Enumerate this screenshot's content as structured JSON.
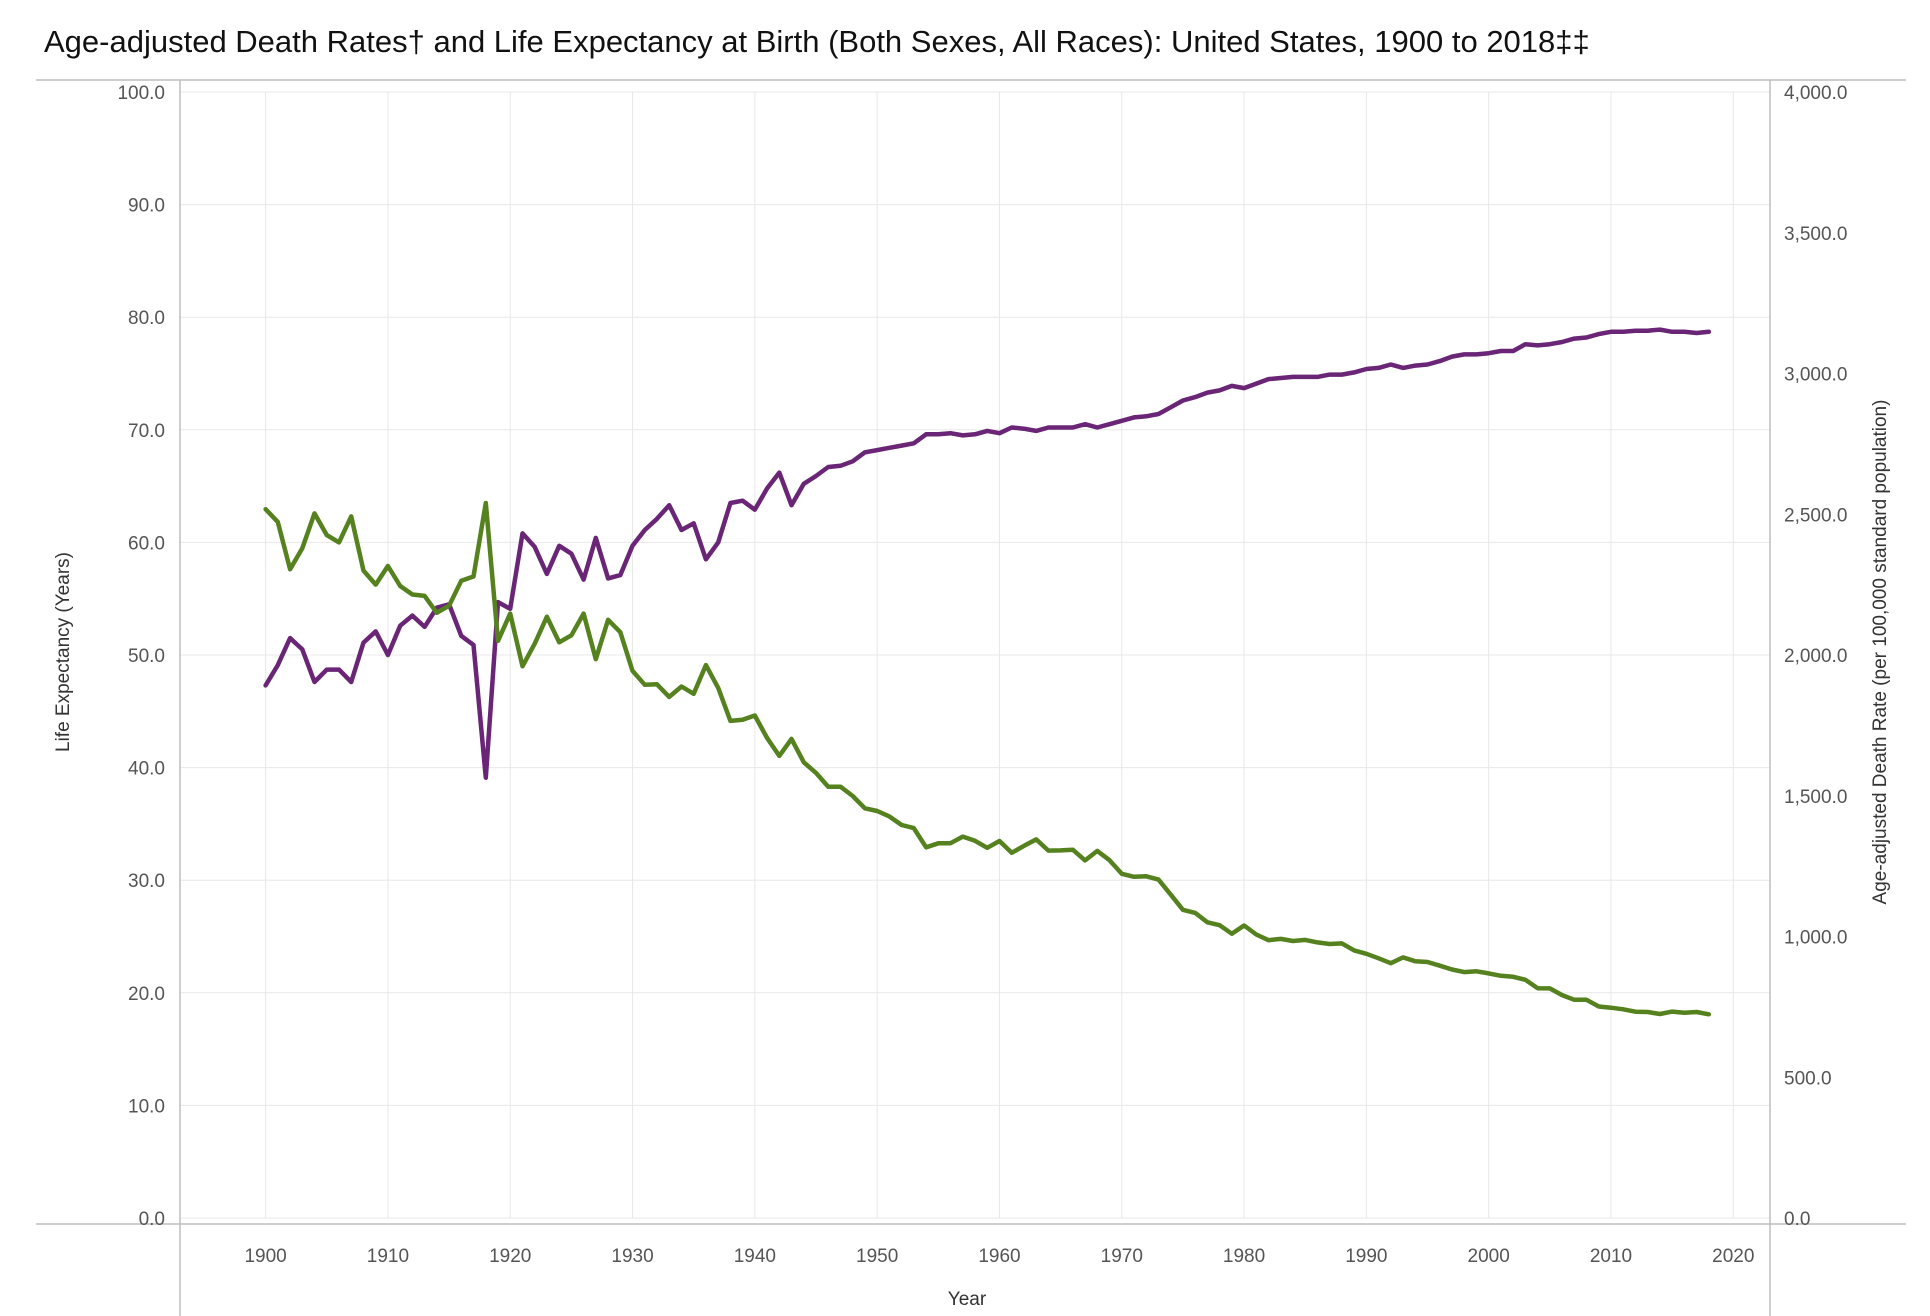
{
  "chart_data": {
    "type": "line",
    "title": "Age-adjusted Death Rates† and Life Expectancy at Birth (Both Sexes, All Races): United States, 1900 to 2018‡‡",
    "xlabel": "Year",
    "ylabel_left": "Life Expectancy (Years)",
    "ylabel_right": "Age-adjusted Death Rate (per 100,000 standard population)",
    "xlim": [
      1893,
      2023
    ],
    "ylim_left": [
      0,
      100
    ],
    "ylim_right": [
      0,
      4000
    ],
    "x_ticks": [
      1900,
      1910,
      1920,
      1930,
      1940,
      1950,
      1960,
      1970,
      1980,
      1990,
      2000,
      2010,
      2020
    ],
    "x_tick_labels": [
      "1900",
      "1910",
      "1920",
      "1930",
      "1940",
      "1950",
      "1960",
      "1970",
      "1980",
      "1990",
      "2000",
      "2010",
      "2020"
    ],
    "left_ticks": [
      0,
      10,
      20,
      30,
      40,
      50,
      60,
      70,
      80,
      90,
      100
    ],
    "left_tick_labels": [
      "0.0",
      "10.0",
      "20.0",
      "30.0",
      "40.0",
      "50.0",
      "60.0",
      "70.0",
      "80.0",
      "90.0",
      "100.0"
    ],
    "right_ticks": [
      0,
      500,
      1000,
      1500,
      2000,
      2500,
      3000,
      3500,
      4000
    ],
    "right_tick_labels": [
      "0.0",
      "500.0",
      "1,000.0",
      "1,500.0",
      "2,000.0",
      "2,500.0",
      "3,000.0",
      "3,500.0",
      "4,000.0"
    ],
    "grid": true,
    "x": [
      1900,
      1901,
      1902,
      1903,
      1904,
      1905,
      1906,
      1907,
      1908,
      1909,
      1910,
      1911,
      1912,
      1913,
      1914,
      1915,
      1916,
      1917,
      1918,
      1919,
      1920,
      1921,
      1922,
      1923,
      1924,
      1925,
      1926,
      1927,
      1928,
      1929,
      1930,
      1931,
      1932,
      1933,
      1934,
      1935,
      1936,
      1937,
      1938,
      1939,
      1940,
      1941,
      1942,
      1943,
      1944,
      1945,
      1946,
      1947,
      1948,
      1949,
      1950,
      1951,
      1952,
      1953,
      1954,
      1955,
      1956,
      1957,
      1958,
      1959,
      1960,
      1961,
      1962,
      1963,
      1964,
      1965,
      1966,
      1967,
      1968,
      1969,
      1970,
      1971,
      1972,
      1973,
      1974,
      1975,
      1976,
      1977,
      1978,
      1979,
      1980,
      1981,
      1982,
      1983,
      1984,
      1985,
      1986,
      1987,
      1988,
      1989,
      1990,
      1991,
      1992,
      1993,
      1994,
      1995,
      1996,
      1997,
      1998,
      1999,
      2000,
      2001,
      2002,
      2003,
      2004,
      2005,
      2006,
      2007,
      2008,
      2009,
      2010,
      2011,
      2012,
      2013,
      2014,
      2015,
      2016,
      2017,
      2018
    ],
    "series": [
      {
        "axis": "left",
        "color": "#6a2576",
        "values": [
          47.3,
          49.1,
          51.5,
          50.5,
          47.6,
          48.7,
          48.7,
          47.6,
          51.1,
          52.1,
          50.0,
          52.6,
          53.5,
          52.5,
          54.2,
          54.5,
          51.7,
          50.9,
          39.1,
          54.7,
          54.1,
          60.8,
          59.6,
          57.2,
          59.7,
          59.0,
          56.7,
          60.4,
          56.8,
          57.1,
          59.7,
          61.1,
          62.1,
          63.3,
          61.1,
          61.7,
          58.5,
          60.0,
          63.5,
          63.7,
          62.9,
          64.8,
          66.2,
          63.3,
          65.2,
          65.9,
          66.7,
          66.8,
          67.2,
          68.0,
          68.2,
          68.4,
          68.6,
          68.8,
          69.6,
          69.6,
          69.7,
          69.5,
          69.6,
          69.9,
          69.7,
          70.2,
          70.1,
          69.9,
          70.2,
          70.2,
          70.2,
          70.5,
          70.2,
          70.5,
          70.8,
          71.1,
          71.2,
          71.4,
          72.0,
          72.6,
          72.9,
          73.3,
          73.5,
          73.9,
          73.7,
          74.1,
          74.5,
          74.6,
          74.7,
          74.7,
          74.7,
          74.9,
          74.9,
          75.1,
          75.4,
          75.5,
          75.8,
          75.5,
          75.7,
          75.8,
          76.1,
          76.5,
          76.7,
          76.7,
          76.8,
          77.0,
          77.0,
          77.6,
          77.5,
          77.6,
          77.8,
          78.1,
          78.2,
          78.5,
          78.7,
          78.7,
          78.8,
          78.8,
          78.9,
          78.7,
          78.7,
          78.6,
          78.7
        ]
      },
      {
        "axis": "right",
        "color": "#55821f",
        "values": [
          2518.0,
          2473.0,
          2304.4,
          2379.3,
          2502.9,
          2425.9,
          2400.0,
          2492.5,
          2300.0,
          2250.0,
          2316.0,
          2245.0,
          2215.0,
          2210.0,
          2150.0,
          2175.0,
          2264.0,
          2279.0,
          2540.0,
          2050.0,
          2147.2,
          1960.0,
          2040.0,
          2136.0,
          2045.0,
          2070.0,
          2147.1,
          1985.0,
          2125.0,
          2081.0,
          1944.0,
          1894.0,
          1896.0,
          1851.0,
          1888.0,
          1862.0,
          1964.0,
          1883.0,
          1766.0,
          1770.0,
          1785.0,
          1705.1,
          1641.5,
          1701.8,
          1619.0,
          1581.0,
          1532.0,
          1532.0,
          1499.0,
          1455.5,
          1446.0,
          1426.2,
          1396.0,
          1385.0,
          1316.7,
          1331.0,
          1331.5,
          1355.0,
          1340.0,
          1315.0,
          1339.2,
          1297.2,
          1322.0,
          1345.0,
          1305.0,
          1306.0,
          1308.5,
          1270.2,
          1304.0,
          1271.0,
          1222.6,
          1212.0,
          1214.0,
          1202.0,
          1149.0,
          1094.9,
          1084.0,
          1050.6,
          1040.0,
          1010.0,
          1039.1,
          1007.1,
          986.9,
          991.5,
          984.1,
          987.9,
          979.1,
          973.3,
          975.6,
          950.5,
          938.7,
          922.4,
          905.2,
          925.7,
          912.0,
          909.3,
          896.4,
          882.6,
          873.5,
          876.5,
          869.0,
          860.3,
          856.9,
          846.1,
          816.2,
          815.5,
          791.8,
          775.3,
          775.2,
          751.2,
          747.0,
          741.3,
          732.8,
          731.9,
          724.6,
          733.1,
          728.8,
          731.9,
          723.6
        ]
      }
    ]
  }
}
